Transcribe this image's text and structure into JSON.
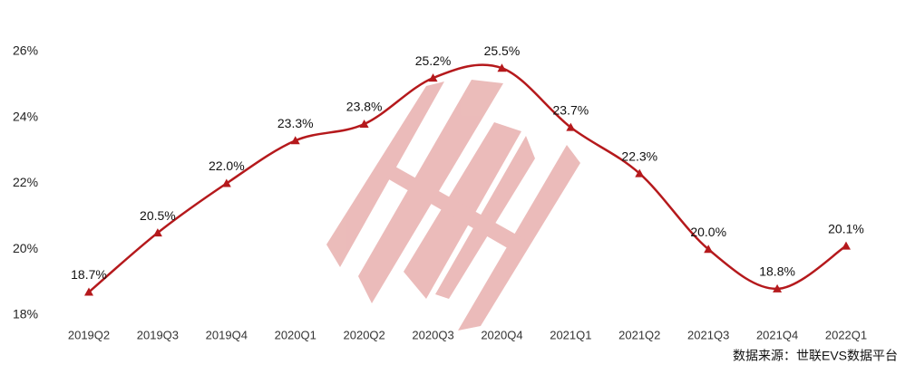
{
  "chart_data": {
    "type": "line",
    "categories": [
      "2019Q2",
      "2019Q3",
      "2019Q4",
      "2020Q1",
      "2020Q2",
      "2020Q3",
      "2020Q4",
      "2021Q1",
      "2021Q2",
      "2021Q3",
      "2021Q4",
      "2022Q1"
    ],
    "values": [
      18.7,
      20.5,
      22.0,
      23.3,
      23.8,
      25.2,
      25.5,
      23.7,
      22.3,
      20.0,
      18.8,
      20.1
    ],
    "value_labels": [
      "18.7%",
      "20.5%",
      "22.0%",
      "23.3%",
      "23.8%",
      "25.2%",
      "25.5%",
      "23.7%",
      "22.3%",
      "20.0%",
      "18.8%",
      "20.1%"
    ],
    "color": "#b5191c",
    "ylim": [
      18,
      26
    ],
    "yticks": [
      {
        "value": 18,
        "label": "18%"
      },
      {
        "value": 20,
        "label": "20%"
      },
      {
        "value": 22,
        "label": "22%"
      },
      {
        "value": 24,
        "label": "24%"
      },
      {
        "value": 26,
        "label": "26%"
      }
    ],
    "source": "数据来源：世联EVS数据平台"
  }
}
